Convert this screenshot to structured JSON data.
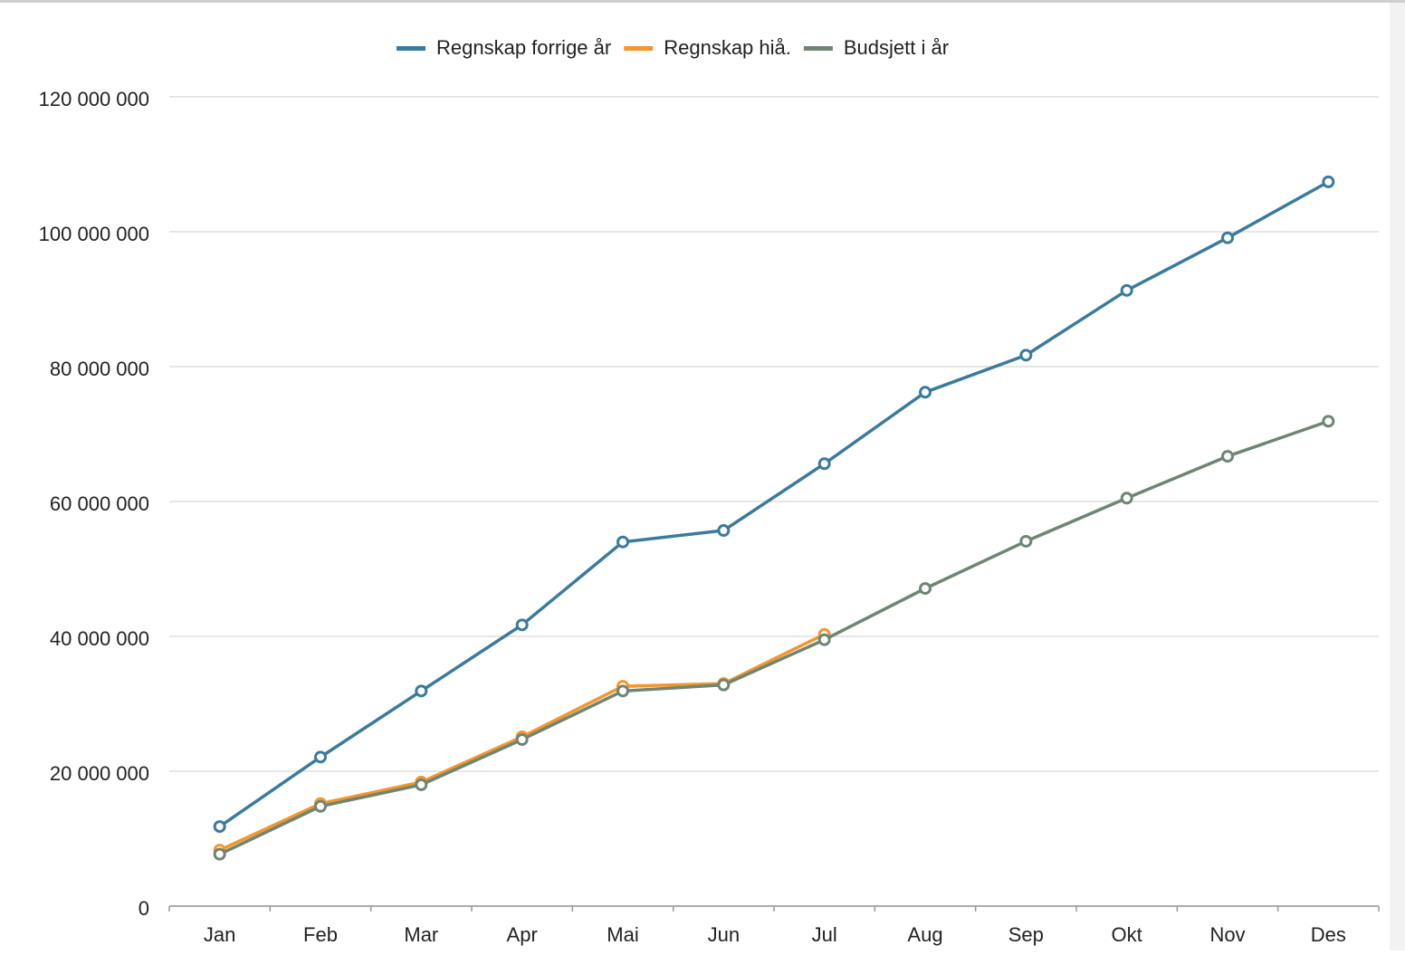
{
  "chart_data": {
    "type": "line",
    "categories": [
      "Jan",
      "Feb",
      "Mar",
      "Apr",
      "Mai",
      "Jun",
      "Jul",
      "Aug",
      "Sep",
      "Okt",
      "Nov",
      "Des"
    ],
    "series": [
      {
        "name": "Regnskap forrige år",
        "color": "#3a7b9c",
        "values": [
          11800000,
          22100000,
          31900000,
          41700000,
          54000000,
          55700000,
          65600000,
          76200000,
          81700000,
          91300000,
          99100000,
          107400000
        ]
      },
      {
        "name": "Regnskap hiå.",
        "color": "#f5962a",
        "values": [
          8300000,
          15200000,
          18400000,
          25100000,
          32600000,
          33000000,
          40300000,
          null,
          null,
          null,
          null,
          null
        ]
      },
      {
        "name": "Budsjett i år",
        "color": "#6f8573",
        "values": [
          7700000,
          14800000,
          18000000,
          24700000,
          31900000,
          32800000,
          39500000,
          47100000,
          54100000,
          60500000,
          66700000,
          71900000
        ]
      }
    ],
    "ylim": [
      0,
      120000000
    ],
    "yticks": [
      0,
      {
        "value": 20000000,
        "label": "20 000 000"
      },
      {
        "value": 40000000,
        "label": "40 000 000"
      },
      {
        "value": 60000000,
        "label": "60 000 000"
      },
      {
        "value": 80000000,
        "label": "80 000 000"
      },
      {
        "value": 100000000,
        "label": "100 000 000"
      },
      {
        "value": 120000000,
        "label": "120 000 000"
      }
    ],
    "grid": true,
    "legend": "top"
  }
}
